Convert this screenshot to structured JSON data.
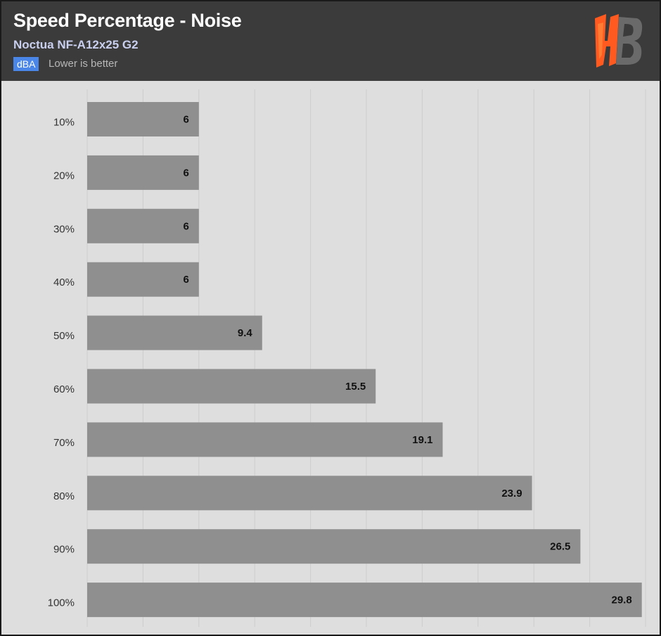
{
  "header": {
    "title": "Speed Percentage - Noise",
    "subtitle": "Noctua NF-A12x25 G2",
    "unit_badge": "dBA",
    "unit_note": "Lower is better"
  },
  "logo": {
    "icon": "hb-logo-icon",
    "text": "HB"
  },
  "colors": {
    "header_bg": "#3b3b3b",
    "plot_bg": "#dedede",
    "bar": "#8f8f8f",
    "badge": "#4a86e8",
    "logo_orange": "#ff5a1f",
    "logo_gray": "#6a6a6a"
  },
  "chart_data": {
    "type": "bar",
    "orientation": "horizontal",
    "categories": [
      "10%",
      "20%",
      "30%",
      "40%",
      "50%",
      "60%",
      "70%",
      "80%",
      "90%",
      "100%"
    ],
    "values": [
      6,
      6,
      6,
      6,
      9.4,
      15.5,
      19.1,
      23.9,
      26.5,
      29.8
    ],
    "value_labels": [
      "6",
      "6",
      "6",
      "6",
      "9.4",
      "15.5",
      "19.1",
      "23.9",
      "26.5",
      "29.8"
    ],
    "xlim": [
      0,
      30
    ],
    "grid": true,
    "grid_step": 3,
    "show_x_ticks": false
  }
}
